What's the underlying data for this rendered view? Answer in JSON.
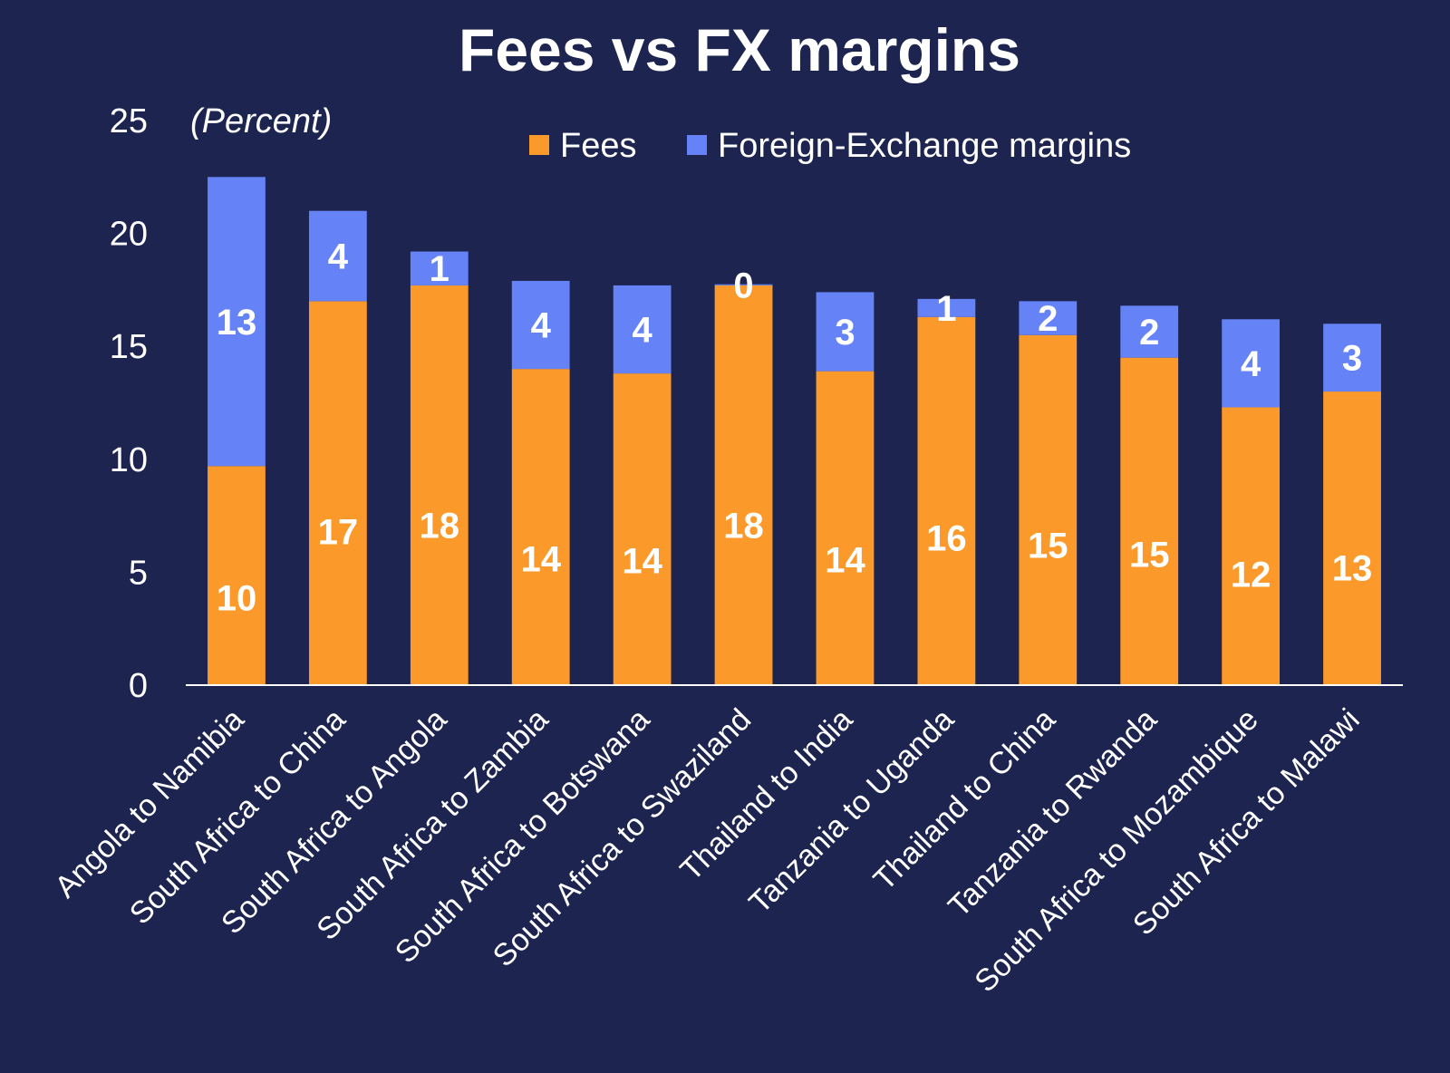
{
  "chart_data": {
    "type": "bar",
    "stacked": true,
    "title": "Fees vs FX margins",
    "unit_label": "(Percent)",
    "xlabel": "",
    "ylabel": "",
    "ylim": [
      0,
      25
    ],
    "yticks": [
      0,
      5,
      10,
      15,
      20,
      25
    ],
    "grid": false,
    "legend_position": "top",
    "categories": [
      "Angola to Namibia",
      "South Africa to China",
      "South Africa to Angola",
      "South Africa to Zambia",
      "South Africa to Botswana",
      "South Africa to Swaziland",
      "Thailand to India",
      "Tanzania to Uganda",
      "Thailand to China",
      "Tanzania to Rwanda",
      "South Africa to Mozambique",
      "South Africa to Malawi"
    ],
    "series": [
      {
        "name": "Fees",
        "color": "#fb9a2a",
        "values": [
          9.7,
          17.0,
          17.7,
          14.0,
          13.8,
          17.7,
          13.9,
          16.3,
          15.5,
          14.5,
          12.3,
          13.0
        ],
        "labels": [
          "10",
          "17",
          "18",
          "14",
          "14",
          "18",
          "14",
          "16",
          "15",
          "15",
          "12",
          "13"
        ]
      },
      {
        "name": "Foreign-Exchange margins",
        "color": "#6582f6",
        "values": [
          12.8,
          4.0,
          1.5,
          3.9,
          3.9,
          0.05,
          3.5,
          0.8,
          1.5,
          2.3,
          3.9,
          3.0
        ],
        "labels": [
          "13",
          "4",
          "1",
          "4",
          "4",
          "0",
          "3",
          "1",
          "2",
          "2",
          "4",
          "3"
        ]
      }
    ]
  }
}
